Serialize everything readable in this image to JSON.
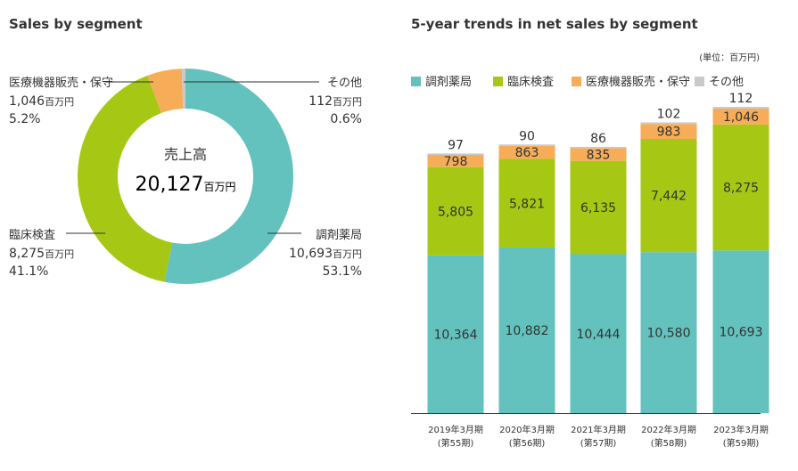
{
  "chart_data": [
    {
      "type": "pie",
      "title": "Sales by segment",
      "center_label": "売上高",
      "center_value": "20,127",
      "center_unit": "百万円",
      "total": 20127,
      "slices": [
        {
          "name": "調剤薬局",
          "value": 10693,
          "value_text": "10,693",
          "unit": "百万円",
          "percent": "53.1%",
          "color": "#63c2be"
        },
        {
          "name": "臨床検査",
          "value": 8275,
          "value_text": "8,275",
          "unit": "百万円",
          "percent": "41.1%",
          "color": "#a6c814"
        },
        {
          "name": "医療機器販売・保守",
          "value": 1046,
          "value_text": "1,046",
          "unit": "百万円",
          "percent": "5.2%",
          "color": "#f7ac57"
        },
        {
          "name": "その他",
          "value": 112,
          "value_text": "112",
          "unit": "百万円",
          "percent": "0.6%",
          "color": "#c9c9c9"
        }
      ]
    },
    {
      "type": "bar",
      "stacked": true,
      "title": "5-year trends in net sales by segment",
      "unit_note": "(単位：百万円)",
      "categories": [
        "2019年3月期",
        "2020年3月期",
        "2021年3月期",
        "2022年3月期",
        "2023年3月期"
      ],
      "category_sub": [
        "(第55期)",
        "(第56期)",
        "(第57期)",
        "(第58期)",
        "(第59期)"
      ],
      "legend_position": "top",
      "ylim": [
        0,
        20500
      ],
      "series": [
        {
          "name": "調剤薬局",
          "color": "#63c2be",
          "values": [
            10364,
            10882,
            10444,
            10580,
            10693
          ],
          "labels": [
            "10,364",
            "10,882",
            "10,444",
            "10,580",
            "10,693"
          ]
        },
        {
          "name": "臨床検査",
          "color": "#a6c814",
          "values": [
            5805,
            5821,
            6135,
            7442,
            8275
          ],
          "labels": [
            "5,805",
            "5,821",
            "6,135",
            "7,442",
            "8,275"
          ]
        },
        {
          "name": "医療機器販売・保守",
          "color": "#f7ac57",
          "values": [
            798,
            863,
            835,
            983,
            1046
          ],
          "labels": [
            "798",
            "863",
            "835",
            "983",
            "1,046"
          ]
        },
        {
          "name": "その他",
          "color": "#c9c9c9",
          "values": [
            97,
            90,
            86,
            102,
            112
          ],
          "labels": [
            "97",
            "90",
            "86",
            "102",
            "112"
          ]
        }
      ]
    }
  ]
}
